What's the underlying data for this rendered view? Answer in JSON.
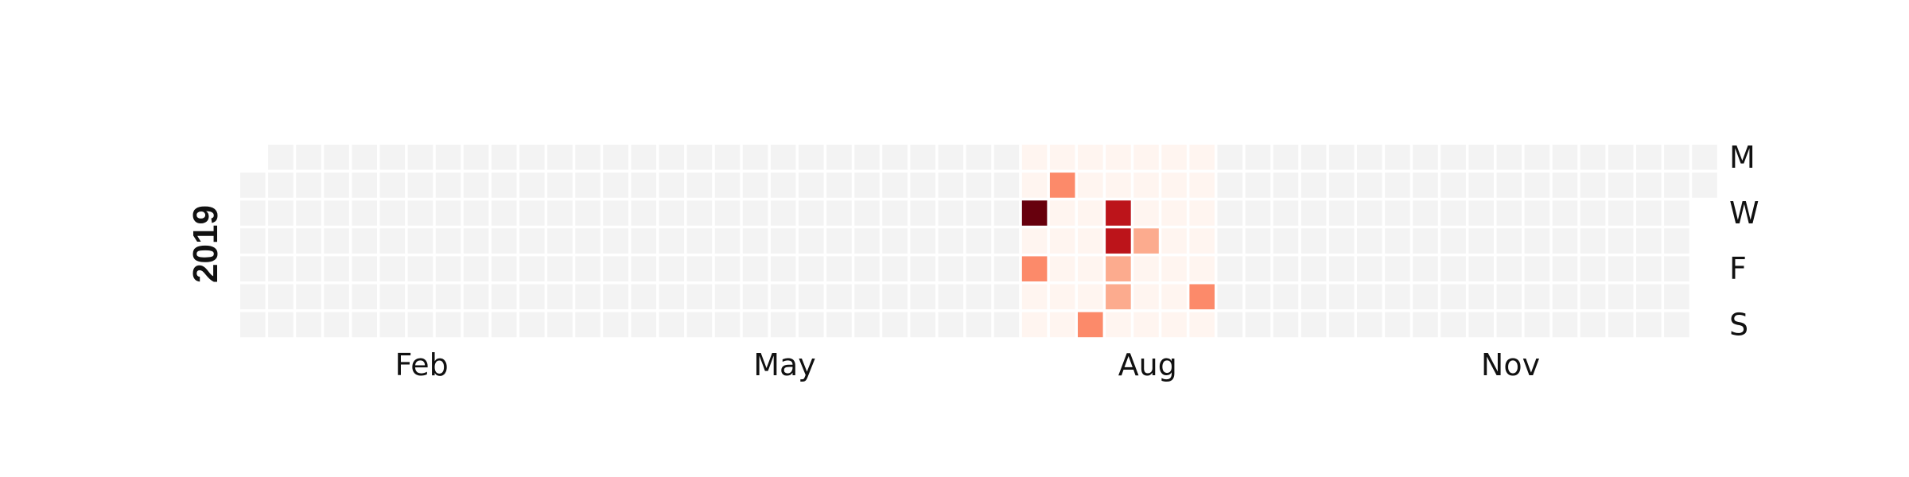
{
  "chart_data": {
    "type": "heatmap",
    "title": "",
    "year_label": "2019",
    "x_tick_labels": [
      {
        "label": "Feb",
        "week": 6.5
      },
      {
        "label": "May",
        "week": 19.5
      },
      {
        "label": "Aug",
        "week": 32.5
      },
      {
        "label": "Nov",
        "week": 45.5
      }
    ],
    "weekday_labels": [
      {
        "label": "M",
        "row": 0
      },
      {
        "label": "W",
        "row": 2
      },
      {
        "label": "F",
        "row": 4
      },
      {
        "label": "S",
        "row": 6
      }
    ],
    "date_range": [
      "2019-01-01",
      "2019-12-31"
    ],
    "data_range": [
      "2019-07-15",
      "2019-09-01"
    ],
    "colormap": "Reds",
    "empty_color": "#f3f3f3",
    "zero_color": "#fff5f0",
    "max_value": 10,
    "values": [
      {
        "date": "2019-07-17",
        "value": 10
      },
      {
        "date": "2019-07-19",
        "value": 4
      },
      {
        "date": "2019-07-23",
        "value": 4
      },
      {
        "date": "2019-08-04",
        "value": 4
      },
      {
        "date": "2019-08-07",
        "value": 8
      },
      {
        "date": "2019-08-08",
        "value": 8
      },
      {
        "date": "2019-08-09",
        "value": 3
      },
      {
        "date": "2019-08-10",
        "value": 3
      },
      {
        "date": "2019-08-15",
        "value": 3
      },
      {
        "date": "2019-08-31",
        "value": 4
      }
    ]
  }
}
